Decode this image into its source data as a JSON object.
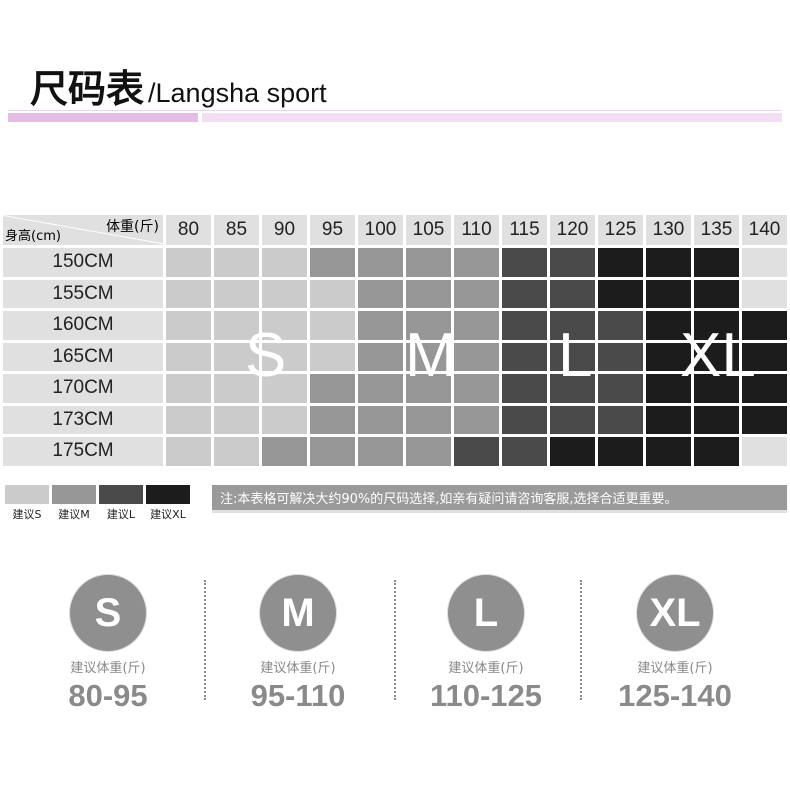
{
  "title": {
    "cn": "尺码表",
    "en": "/Langsha sport"
  },
  "colors": {
    "S": "#cbcbcb",
    "M": "#979797",
    "L": "#4a4a4a",
    "XL": "#1c1c1c",
    "empty": "#e0e0e0",
    "accent": "#e4bde4"
  },
  "table": {
    "corner_weight": "体重(斤)",
    "corner_height": "身高(cm)",
    "weights": [
      "80",
      "85",
      "90",
      "95",
      "100",
      "105",
      "110",
      "115",
      "120",
      "125",
      "130",
      "135",
      "140"
    ],
    "rows": [
      {
        "height": "150CM",
        "sizes": [
          "S",
          "S",
          "S",
          "M",
          "M",
          "M",
          "M",
          "L",
          "L",
          "XL",
          "XL",
          "XL",
          ""
        ]
      },
      {
        "height": "155CM",
        "sizes": [
          "S",
          "S",
          "S",
          "S",
          "M",
          "M",
          "M",
          "L",
          "L",
          "XL",
          "XL",
          "XL",
          ""
        ]
      },
      {
        "height": "160CM",
        "sizes": [
          "S",
          "S",
          "S",
          "S",
          "M",
          "M",
          "M",
          "L",
          "L",
          "L",
          "XL",
          "XL",
          "XL"
        ]
      },
      {
        "height": "165CM",
        "sizes": [
          "S",
          "S",
          "S",
          "S",
          "M",
          "M",
          "M",
          "L",
          "L",
          "L",
          "XL",
          "XL",
          "XL"
        ]
      },
      {
        "height": "170CM",
        "sizes": [
          "S",
          "S",
          "S",
          "M",
          "M",
          "M",
          "M",
          "L",
          "L",
          "L",
          "XL",
          "XL",
          "XL"
        ]
      },
      {
        "height": "173CM",
        "sizes": [
          "S",
          "S",
          "S",
          "M",
          "M",
          "M",
          "M",
          "L",
          "L",
          "L",
          "XL",
          "XL",
          "XL"
        ]
      },
      {
        "height": "175CM",
        "sizes": [
          "S",
          "S",
          "M",
          "M",
          "M",
          "M",
          "L",
          "L",
          "XL",
          "XL",
          "XL",
          "XL",
          ""
        ]
      }
    ],
    "overlay": [
      "S",
      "M",
      "L",
      "XL"
    ]
  },
  "legend": [
    {
      "key": "S",
      "label": "建议S"
    },
    {
      "key": "M",
      "label": "建议M"
    },
    {
      "key": "L",
      "label": "建议L"
    },
    {
      "key": "XL",
      "label": "建议XL"
    }
  ],
  "note": "注:本表格可解决大约90%的尺码选择,如亲有疑问请咨询客服,选择合适更重要。",
  "sizes": [
    {
      "size": "S",
      "label": "建议体重(斤)",
      "range": "80-95"
    },
    {
      "size": "M",
      "label": "建议体重(斤)",
      "range": "95-110"
    },
    {
      "size": "L",
      "label": "建议体重(斤)",
      "range": "110-125"
    },
    {
      "size": "XL",
      "label": "建议体重(斤)",
      "range": "125-140"
    }
  ]
}
